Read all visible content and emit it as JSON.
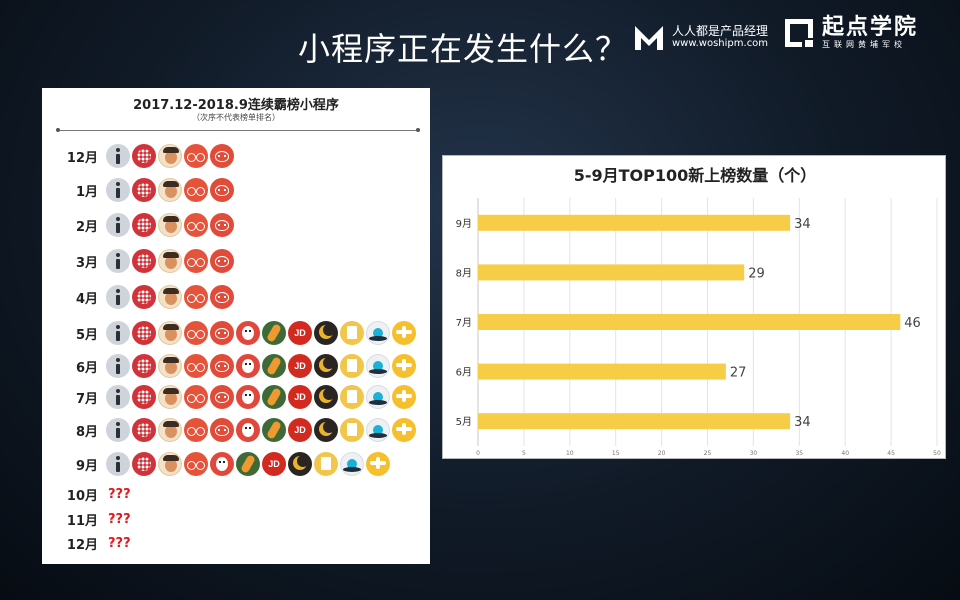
{
  "slide": {
    "title": "小程序正在发生什么？"
  },
  "logos": {
    "renren": {
      "name": "人人都是产品经理",
      "url": "www.woshipm.com"
    },
    "qidian": {
      "name": "起点学院",
      "tagline": "互联网黄埔军校"
    }
  },
  "left_panel": {
    "title": "2017.12-2018.9连续霸榜小程序",
    "subtitle": "（次序不代表榜单排名）",
    "rows": [
      {
        "month": "12月",
        "icons": [
          "info-icon",
          "heart-icon",
          "man-icon",
          "bike-icon",
          "cat-icon"
        ]
      },
      {
        "month": "1月",
        "icons": [
          "info-icon",
          "heart-icon",
          "man-icon",
          "bike-icon",
          "cat-icon"
        ]
      },
      {
        "month": "2月",
        "icons": [
          "info-icon",
          "heart-icon",
          "man-icon",
          "bike-icon",
          "cat-icon"
        ]
      },
      {
        "month": "3月",
        "icons": [
          "info-icon",
          "heart-icon",
          "man-icon",
          "bike-icon",
          "cat-icon"
        ]
      },
      {
        "month": "4月",
        "icons": [
          "info-icon",
          "heart-icon",
          "man-icon",
          "bike-icon",
          "cat-icon"
        ]
      },
      {
        "month": "5月",
        "icons": [
          "info-icon",
          "heart-icon",
          "man-icon",
          "bike-icon",
          "cat-icon",
          "red-face-icon",
          "green-leaf-icon",
          "jd-icon",
          "moon-icon",
          "book-icon",
          "drop-icon",
          "plane-icon"
        ]
      },
      {
        "month": "6月",
        "icons": [
          "info-icon",
          "heart-icon",
          "man-icon",
          "bike-icon",
          "cat-icon",
          "red-face-icon",
          "green-leaf-icon",
          "jd-icon",
          "moon-icon",
          "book-icon",
          "drop-icon",
          "plane-icon"
        ]
      },
      {
        "month": "7月",
        "icons": [
          "info-icon",
          "heart-icon",
          "man-icon",
          "bike-icon",
          "cat-icon",
          "red-face-icon",
          "green-leaf-icon",
          "jd-icon",
          "moon-icon",
          "book-icon",
          "drop-icon",
          "plane-icon"
        ]
      },
      {
        "month": "8月",
        "icons": [
          "info-icon",
          "heart-icon",
          "man-icon",
          "bike-icon",
          "cat-icon",
          "red-face-icon",
          "green-leaf-icon",
          "jd-icon",
          "moon-icon",
          "book-icon",
          "drop-icon",
          "plane-icon"
        ]
      },
      {
        "month": "9月",
        "icons": [
          "info-icon",
          "heart-icon",
          "man-icon",
          "bike-icon",
          "red-face-icon",
          "green-leaf-icon",
          "jd-icon",
          "moon-icon",
          "book-icon",
          "drop-icon",
          "plane-icon"
        ]
      },
      {
        "month": "10月",
        "unknown": "???"
      },
      {
        "month": "11月",
        "unknown": "???"
      },
      {
        "month": "12月",
        "unknown": "???"
      }
    ],
    "jd_label": "JD"
  },
  "chart_data": {
    "type": "bar",
    "orientation": "horizontal",
    "title": "5-9月TOP100新上榜数量（个）",
    "categories": [
      "9月",
      "8月",
      "7月",
      "6月",
      "5月"
    ],
    "values": [
      34,
      29,
      46,
      27,
      34
    ],
    "xlim": [
      0,
      50
    ],
    "xticks": [
      0,
      5,
      10,
      15,
      20,
      25,
      30,
      35,
      40,
      45,
      50
    ],
    "grid": true,
    "bar_color": "#f7cd48"
  },
  "colors": {
    "unknown_text": "#e0191e"
  }
}
